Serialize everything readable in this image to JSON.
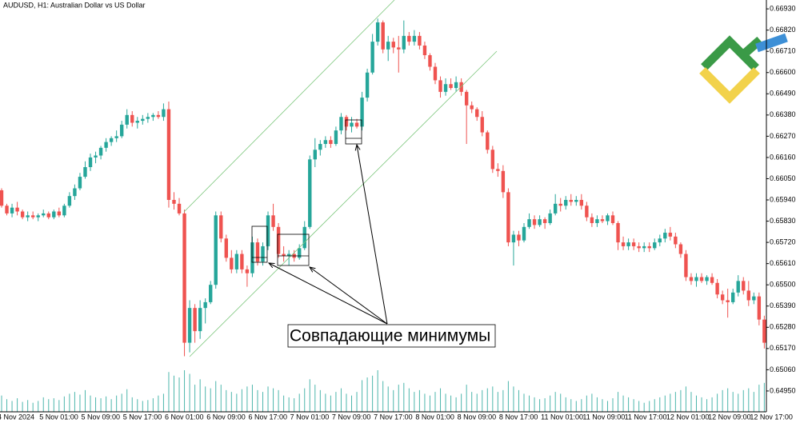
{
  "chart_data": {
    "type": "candlestick",
    "title": "AUDUSD, H1:  Australian Dollar vs US Dollar",
    "annotation": "Совпадающие минимумы",
    "up_color": "#26a69a",
    "down_color": "#ef5350",
    "volume_color": "#4db6ac",
    "ylim": [
      0.64842,
      0.66976
    ],
    "yticks": [
      {
        "value": 0.6693,
        "label": "0.66930"
      },
      {
        "value": 0.6682,
        "label": "0.66820"
      },
      {
        "value": 0.6671,
        "label": "0.66710"
      },
      {
        "value": 0.666,
        "label": "0.66600"
      },
      {
        "value": 0.6649,
        "label": "0.66490"
      },
      {
        "value": 0.6638,
        "label": "0.66380"
      },
      {
        "value": 0.6627,
        "label": "0.66270"
      },
      {
        "value": 0.6616,
        "label": "0.66160"
      },
      {
        "value": 0.6605,
        "label": "0.66050"
      },
      {
        "value": 0.6594,
        "label": "0.65940"
      },
      {
        "value": 0.6583,
        "label": "0.65830"
      },
      {
        "value": 0.6572,
        "label": "0.65720"
      },
      {
        "value": 0.6561,
        "label": "0.65610"
      },
      {
        "value": 0.655,
        "label": "0.65500"
      },
      {
        "value": 0.6539,
        "label": "0.65390"
      },
      {
        "value": 0.6528,
        "label": "0.65280"
      },
      {
        "value": 0.6517,
        "label": "0.65170"
      },
      {
        "value": 0.6506,
        "label": "0.65060"
      },
      {
        "value": 0.6495,
        "label": "0.64950"
      }
    ],
    "categories": [
      "4 Nov 2024",
      null,
      null,
      null,
      null,
      null,
      null,
      null,
      "5 Nov 01:00",
      null,
      null,
      null,
      null,
      null,
      null,
      null,
      "5 Nov 09:00",
      null,
      null,
      null,
      null,
      null,
      null,
      null,
      "5 Nov 17:00",
      null,
      null,
      null,
      null,
      null,
      null,
      null,
      "6 Nov 01:00",
      null,
      null,
      null,
      null,
      null,
      null,
      null,
      "6 Nov 09:00",
      null,
      null,
      null,
      null,
      null,
      null,
      null,
      "6 Nov 17:00",
      null,
      null,
      null,
      null,
      null,
      null,
      null,
      "7 Nov 01:00",
      null,
      null,
      null,
      null,
      null,
      null,
      null,
      "7 Nov 09:00",
      null,
      null,
      null,
      null,
      null,
      null,
      null,
      "7 Nov 17:00",
      null,
      null,
      null,
      null,
      null,
      null,
      null,
      "8 Nov 01:00",
      null,
      null,
      null,
      null,
      null,
      null,
      null,
      "8 Nov 09:00",
      null,
      null,
      null,
      null,
      null,
      null,
      null,
      "8 Nov 17:00",
      null,
      null,
      null,
      null,
      null,
      null,
      null,
      "11 Nov 01:00",
      null,
      null,
      null,
      null,
      null,
      null,
      null,
      "11 Nov 09:00",
      null,
      null,
      null,
      null,
      null,
      null,
      null,
      "11 Nov 17:00",
      null,
      null,
      null,
      null,
      null,
      null,
      null,
      "12 Nov 01:00",
      null,
      null,
      null,
      null,
      null,
      null,
      null,
      "12 Nov 09:00",
      null,
      null,
      null,
      null,
      null,
      null,
      null,
      "12 Nov 17:00",
      null,
      null
    ],
    "open": [
      0.6599,
      0.6591,
      0.6587,
      0.659,
      0.6588,
      0.6585,
      0.6586,
      0.6585,
      0.6586,
      0.6587,
      0.6585,
      0.6588,
      0.6586,
      0.6591,
      0.6596,
      0.66,
      0.6606,
      0.6611,
      0.6616,
      0.6617,
      0.6621,
      0.6624,
      0.6626,
      0.6627,
      0.6633,
      0.6638,
      0.6634,
      0.6635,
      0.6636,
      0.6637,
      0.6638,
      0.6637,
      0.6641,
      0.6594,
      0.6592,
      0.6587,
      0.652,
      0.6538,
      0.6526,
      0.6538,
      0.6541,
      0.655,
      0.6586,
      0.6574,
      0.6564,
      0.6558,
      0.6566,
      0.6558,
      0.6556,
      0.6572,
      0.6562,
      0.657,
      0.6586,
      0.658,
      0.6566,
      0.6565,
      0.6566,
      0.6564,
      0.6569,
      0.658,
      0.6615,
      0.662,
      0.6623,
      0.6625,
      0.6623,
      0.663,
      0.6637,
      0.6632,
      0.6634,
      0.6632,
      0.6647,
      0.666,
      0.6676,
      0.6686,
      0.6672,
      0.6676,
      0.6673,
      0.6672,
      0.6679,
      0.6676,
      0.6679,
      0.6674,
      0.6669,
      0.6663,
      0.6656,
      0.665,
      0.6654,
      0.6652,
      0.6655,
      0.665,
      0.6643,
      0.6641,
      0.6637,
      0.6629,
      0.662,
      0.661,
      0.6609,
      0.6598,
      0.6572,
      0.6576,
      0.6573,
      0.658,
      0.6584,
      0.6581,
      0.6584,
      0.6582,
      0.6587,
      0.6592,
      0.6591,
      0.6594,
      0.6593,
      0.6594,
      0.6591,
      0.6585,
      0.6582,
      0.6584,
      0.6583,
      0.6586,
      0.6582,
      0.6572,
      0.657,
      0.6572,
      0.657,
      0.6569,
      0.657,
      0.6569,
      0.6572,
      0.6574,
      0.6577,
      0.6575,
      0.6571,
      0.6566,
      0.6554,
      0.6552,
      0.6554,
      0.6552,
      0.6554,
      0.6551,
      0.6545,
      0.6542,
      0.6541,
      0.6546,
      0.6552,
      0.6547,
      0.6542,
      0.6544,
      0.6532
    ],
    "high": [
      0.66,
      0.6592,
      0.6592,
      0.6593,
      0.6589,
      0.6588,
      0.6588,
      0.6587,
      0.6589,
      0.6588,
      0.6589,
      0.659,
      0.6592,
      0.6598,
      0.6602,
      0.6608,
      0.6614,
      0.6618,
      0.6619,
      0.6622,
      0.6626,
      0.6627,
      0.663,
      0.6635,
      0.6641,
      0.664,
      0.6637,
      0.6638,
      0.6639,
      0.6639,
      0.664,
      0.6644,
      0.6645,
      0.6598,
      0.6595,
      0.6589,
      0.6542,
      0.654,
      0.6542,
      0.6543,
      0.6552,
      0.6588,
      0.6588,
      0.6576,
      0.6568,
      0.6568,
      0.6568,
      0.656,
      0.6575,
      0.6574,
      0.6572,
      0.6588,
      0.6592,
      0.6582,
      0.657,
      0.6568,
      0.6568,
      0.6571,
      0.6583,
      0.6617,
      0.6626,
      0.6625,
      0.6627,
      0.6627,
      0.6632,
      0.6639,
      0.6638,
      0.6637,
      0.6636,
      0.665,
      0.6662,
      0.668,
      0.6688,
      0.6687,
      0.6679,
      0.6678,
      0.6679,
      0.6687,
      0.6681,
      0.6682,
      0.6681,
      0.6676,
      0.667,
      0.6665,
      0.6658,
      0.6657,
      0.6657,
      0.6658,
      0.6657,
      0.6651,
      0.6645,
      0.6642,
      0.664,
      0.663,
      0.6622,
      0.6613,
      0.6612,
      0.66,
      0.6578,
      0.6578,
      0.6582,
      0.6587,
      0.6586,
      0.6586,
      0.6585,
      0.6589,
      0.6597,
      0.6595,
      0.6596,
      0.6597,
      0.6596,
      0.6597,
      0.6593,
      0.6587,
      0.6586,
      0.6586,
      0.6587,
      0.6588,
      0.6583,
      0.6575,
      0.6574,
      0.6574,
      0.6572,
      0.6572,
      0.6572,
      0.6574,
      0.6576,
      0.6579,
      0.658,
      0.6577,
      0.6572,
      0.6568,
      0.6556,
      0.6556,
      0.6556,
      0.6555,
      0.6556,
      0.6553,
      0.6547,
      0.6548,
      0.6548,
      0.6555,
      0.6554,
      0.6552,
      0.6546,
      0.6546,
      0.6534
    ],
    "low": [
      0.659,
      0.6586,
      0.6585,
      0.6586,
      0.6584,
      0.6583,
      0.6584,
      0.6583,
      0.6585,
      0.6584,
      0.6584,
      0.6585,
      0.6585,
      0.659,
      0.6594,
      0.6599,
      0.6605,
      0.6609,
      0.6613,
      0.6615,
      0.6619,
      0.6622,
      0.6624,
      0.6626,
      0.6631,
      0.6632,
      0.6631,
      0.6633,
      0.6634,
      0.6635,
      0.6636,
      0.6635,
      0.659,
      0.6589,
      0.6586,
      0.6513,
      0.6515,
      0.652,
      0.6522,
      0.653,
      0.654,
      0.6548,
      0.6572,
      0.6562,
      0.6556,
      0.6556,
      0.6556,
      0.6549,
      0.6554,
      0.656,
      0.656,
      0.6568,
      0.6578,
      0.6564,
      0.6562,
      0.656,
      0.6562,
      0.6563,
      0.6568,
      0.6579,
      0.6611,
      0.6617,
      0.6621,
      0.6621,
      0.6622,
      0.6628,
      0.663,
      0.6629,
      0.6631,
      0.663,
      0.6645,
      0.6659,
      0.6674,
      0.667,
      0.6666,
      0.667,
      0.666,
      0.667,
      0.6674,
      0.6674,
      0.6672,
      0.6667,
      0.6661,
      0.6654,
      0.6647,
      0.6648,
      0.6651,
      0.665,
      0.6648,
      0.6623,
      0.6639,
      0.6635,
      0.6627,
      0.6618,
      0.6608,
      0.6606,
      0.6595,
      0.657,
      0.656,
      0.657,
      0.6572,
      0.6579,
      0.6579,
      0.658,
      0.6579,
      0.6581,
      0.6586,
      0.6588,
      0.6589,
      0.6591,
      0.6591,
      0.6589,
      0.6583,
      0.658,
      0.658,
      0.6582,
      0.6581,
      0.6581,
      0.6568,
      0.6568,
      0.6568,
      0.6568,
      0.6567,
      0.6567,
      0.6567,
      0.6568,
      0.657,
      0.6572,
      0.6573,
      0.6569,
      0.6564,
      0.6552,
      0.655,
      0.6549,
      0.6551,
      0.655,
      0.655,
      0.6543,
      0.654,
      0.6533,
      0.654,
      0.6544,
      0.6545,
      0.6539,
      0.654,
      0.6529,
      0.6517
    ],
    "close": [
      0.6591,
      0.6587,
      0.659,
      0.6588,
      0.6585,
      0.6586,
      0.6585,
      0.6586,
      0.6587,
      0.6585,
      0.6588,
      0.6586,
      0.6591,
      0.6596,
      0.66,
      0.6606,
      0.6611,
      0.6616,
      0.6617,
      0.6621,
      0.6624,
      0.6626,
      0.6627,
      0.6633,
      0.6638,
      0.6634,
      0.6635,
      0.6636,
      0.6637,
      0.6638,
      0.6637,
      0.6641,
      0.6594,
      0.6592,
      0.6587,
      0.652,
      0.6538,
      0.6526,
      0.6538,
      0.6541,
      0.655,
      0.6586,
      0.6574,
      0.6564,
      0.6558,
      0.6566,
      0.6558,
      0.6556,
      0.6572,
      0.6562,
      0.657,
      0.6586,
      0.658,
      0.6566,
      0.6565,
      0.6566,
      0.6564,
      0.6569,
      0.658,
      0.6615,
      0.662,
      0.6623,
      0.6625,
      0.6623,
      0.663,
      0.6637,
      0.6632,
      0.6634,
      0.6632,
      0.6647,
      0.666,
      0.6676,
      0.6686,
      0.6672,
      0.6676,
      0.6673,
      0.6672,
      0.6679,
      0.6676,
      0.6679,
      0.6674,
      0.6669,
      0.6663,
      0.6656,
      0.665,
      0.6654,
      0.6652,
      0.6655,
      0.665,
      0.6643,
      0.6641,
      0.6637,
      0.6629,
      0.662,
      0.661,
      0.6609,
      0.6598,
      0.6572,
      0.6576,
      0.6573,
      0.658,
      0.6584,
      0.6581,
      0.6584,
      0.6582,
      0.6587,
      0.6592,
      0.6591,
      0.6594,
      0.6593,
      0.6594,
      0.6591,
      0.6585,
      0.6582,
      0.6584,
      0.6583,
      0.6586,
      0.6582,
      0.6572,
      0.657,
      0.6572,
      0.657,
      0.6569,
      0.657,
      0.6569,
      0.6572,
      0.6574,
      0.6577,
      0.6575,
      0.6571,
      0.6566,
      0.6554,
      0.6552,
      0.6554,
      0.6552,
      0.6554,
      0.6551,
      0.6545,
      0.6542,
      0.6541,
      0.6546,
      0.6552,
      0.6547,
      0.6542,
      0.6544,
      0.6532,
      0.652
    ],
    "volume": [
      18,
      14,
      12,
      15,
      11,
      13,
      10,
      12,
      16,
      14,
      15,
      13,
      17,
      20,
      22,
      19,
      24,
      18,
      16,
      15,
      17,
      14,
      18,
      20,
      25,
      16,
      14,
      12,
      13,
      15,
      18,
      20,
      44,
      40,
      38,
      46,
      42,
      30,
      36,
      28,
      26,
      34,
      30,
      24,
      22,
      20,
      25,
      28,
      30,
      24,
      22,
      28,
      26,
      24,
      18,
      16,
      15,
      20,
      26,
      36,
      30,
      24,
      20,
      18,
      22,
      26,
      20,
      18,
      22,
      35,
      38,
      40,
      46,
      34,
      28,
      24,
      30,
      32,
      26,
      22,
      24,
      20,
      18,
      22,
      26,
      20,
      18,
      16,
      20,
      30,
      22,
      20,
      24,
      26,
      28,
      22,
      24,
      34,
      28,
      24,
      20,
      18,
      16,
      14,
      15,
      18,
      22,
      20,
      16,
      14,
      12,
      14,
      18,
      20,
      16,
      14,
      12,
      15,
      22,
      18,
      16,
      14,
      12,
      10,
      12,
      14,
      16,
      18,
      20,
      22,
      24,
      28,
      22,
      18,
      16,
      14,
      16,
      20,
      24,
      26,
      22,
      20,
      24,
      26,
      22,
      30,
      32
    ]
  }
}
